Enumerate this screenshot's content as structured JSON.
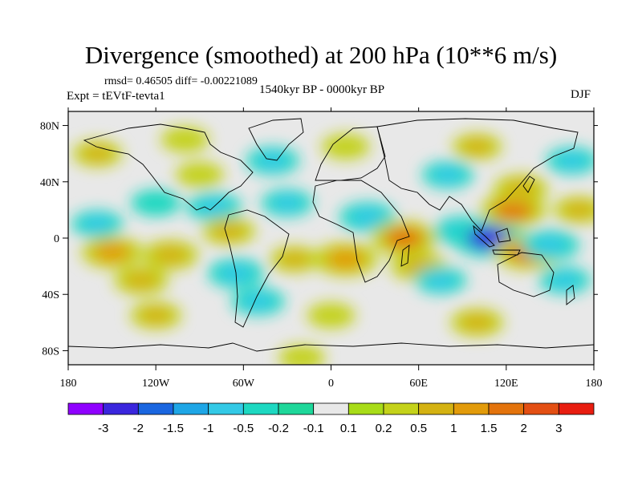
{
  "chart_data": {
    "type": "heatmap",
    "title": "Divergence (smoothed) at 200 hPa (10**6 m/s)",
    "stats_text": "rmsd= 0.46505 diff= -0.00221089",
    "period": "1540kyr BP - 0000kyr BP",
    "experiment": "Expt = tEVtF-tevta1",
    "season": "DJF",
    "x_range": [
      -180,
      180
    ],
    "y_range": [
      -90,
      90
    ],
    "x_ticks": [
      {
        "value": -180,
        "label": "180"
      },
      {
        "value": -120,
        "label": "120W"
      },
      {
        "value": -60,
        "label": "60W"
      },
      {
        "value": 0,
        "label": "0"
      },
      {
        "value": 60,
        "label": "60E"
      },
      {
        "value": 120,
        "label": "120E"
      },
      {
        "value": 180,
        "label": "180"
      }
    ],
    "y_ticks": [
      {
        "value": 80,
        "label": "80N"
      },
      {
        "value": 40,
        "label": "40N"
      },
      {
        "value": 0,
        "label": "0"
      },
      {
        "value": -40,
        "label": "40S"
      },
      {
        "value": -80,
        "label": "80S"
      }
    ],
    "colorbar": {
      "colors": [
        "#8f00ff",
        "#3a26dd",
        "#1a66e0",
        "#1ea6e6",
        "#33c9e6",
        "#1dd8c1",
        "#1ed79a",
        "#e8e8e8",
        "#a8dc18",
        "#c4d21a",
        "#d4b212",
        "#e29b0a",
        "#e3730c",
        "#e34f13",
        "#e81d10"
      ],
      "levels": [
        "-3",
        "-2",
        "-1.5",
        "-1",
        "-0.5",
        "-0.2",
        "-0.1",
        "0.1",
        "0.2",
        "0.5",
        "1",
        "1.5",
        "2",
        "3"
      ]
    },
    "features": [
      {
        "lon": -150,
        "lat": -10,
        "value": 1.2
      },
      {
        "lon": -130,
        "lat": -30,
        "value": 0.8
      },
      {
        "lon": -110,
        "lat": -12,
        "value": 0.9
      },
      {
        "lon": -160,
        "lat": 10,
        "value": -0.6
      },
      {
        "lon": -120,
        "lat": 25,
        "value": -0.5
      },
      {
        "lon": -90,
        "lat": 45,
        "value": 0.4
      },
      {
        "lon": -80,
        "lat": 22,
        "value": -0.8
      },
      {
        "lon": -70,
        "lat": 5,
        "value": 0.7
      },
      {
        "lon": -65,
        "lat": -25,
        "value": -0.9
      },
      {
        "lon": -50,
        "lat": -45,
        "value": -0.7
      },
      {
        "lon": -40,
        "lat": 55,
        "value": -0.7
      },
      {
        "lon": -30,
        "lat": 25,
        "value": -0.6
      },
      {
        "lon": -25,
        "lat": -15,
        "value": 0.5
      },
      {
        "lon": -100,
        "lat": 70,
        "value": 0.4
      },
      {
        "lon": -160,
        "lat": 60,
        "value": 0.5
      },
      {
        "lon": 10,
        "lat": 65,
        "value": 0.4
      },
      {
        "lon": 25,
        "lat": 15,
        "value": -0.9
      },
      {
        "lon": 10,
        "lat": -15,
        "value": 1.4
      },
      {
        "lon": 50,
        "lat": 0,
        "value": 1.5
      },
      {
        "lon": 60,
        "lat": -20,
        "value": 0.9
      },
      {
        "lon": 75,
        "lat": -30,
        "value": -0.6
      },
      {
        "lon": 80,
        "lat": 45,
        "value": -0.6
      },
      {
        "lon": 90,
        "lat": 5,
        "value": -0.9
      },
      {
        "lon": 100,
        "lat": 65,
        "value": 0.5
      },
      {
        "lon": 108,
        "lat": 0,
        "value": -2.5
      },
      {
        "lon": 125,
        "lat": 20,
        "value": 1.5
      },
      {
        "lon": 130,
        "lat": 35,
        "value": 0.8
      },
      {
        "lon": 135,
        "lat": -10,
        "value": 1.6
      },
      {
        "lon": 150,
        "lat": -5,
        "value": -1.0
      },
      {
        "lon": 160,
        "lat": -30,
        "value": -0.6
      },
      {
        "lon": 170,
        "lat": 20,
        "value": 0.6
      },
      {
        "lon": 165,
        "lat": 55,
        "value": -0.6
      },
      {
        "lon": 0,
        "lat": -55,
        "value": 0.4
      },
      {
        "lon": -120,
        "lat": -55,
        "value": 0.6
      },
      {
        "lon": 100,
        "lat": -60,
        "value": 0.7
      },
      {
        "lon": -20,
        "lat": -85,
        "value": 0.3
      }
    ]
  }
}
